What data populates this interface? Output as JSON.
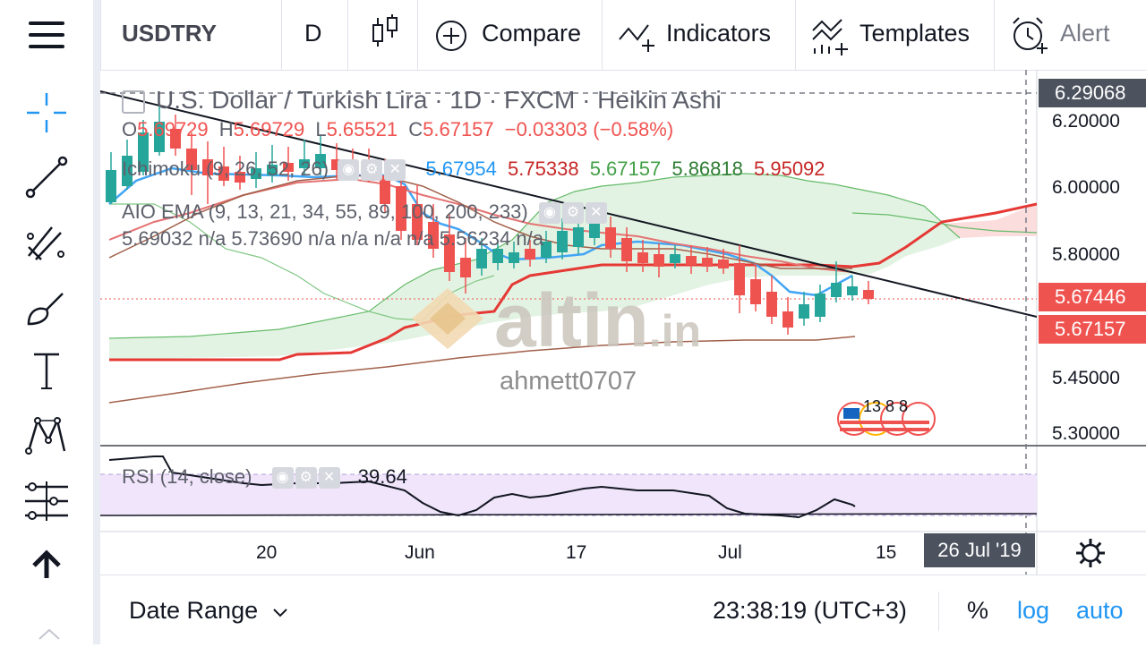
{
  "toolbar": {
    "symbol": "USDTRY",
    "interval": "D",
    "compare_label": "Compare",
    "indicators_label": "Indicators",
    "templates_label": "Templates",
    "alert_label": "Alert"
  },
  "legend": {
    "title": "U.S. Dollar / Turkish Lira · 1D · FXCM · Heikin Ashi",
    "ohlc": {
      "o_key": "O",
      "o_val": "5.69729",
      "h_key": "H",
      "h_val": "5.69729",
      "l_key": "L",
      "l_val": "5.65521",
      "c_key": "C",
      "c_val": "5.67157",
      "change": "−0.03303 (−0.58%)"
    },
    "ichimoku": {
      "name": "Ichimoku (9, 26, 52, 26)",
      "values": [
        "5.67954",
        "5.75338",
        "5.67157",
        "5.86818",
        "5.95092"
      ],
      "colors": [
        "#2196f3",
        "#c62828",
        "#43a047",
        "#2e7d32",
        "#c62828"
      ]
    },
    "aio_ema": {
      "name": "AIO EMA (9, 13, 21, 34, 55, 89, 100, 200, 233)",
      "line2": "5.69032 n/a 5.73690 n/a n/a n/a n/a 5.56234 n/a"
    }
  },
  "rsi": {
    "name": "RSI (14, close)",
    "value": "39.64"
  },
  "price_axis": {
    "ticks": [
      "6.20000",
      "6.00000",
      "5.80000",
      "5.45000",
      "5.30000"
    ],
    "crosshair_label": "6.29068",
    "last_price_label": "5.67446",
    "close_label": "5.67157"
  },
  "time_axis": {
    "ticks": [
      "20",
      "Jun",
      "17",
      "Jul",
      "15"
    ],
    "crosshair_label": "26 Jul '19"
  },
  "watermark": {
    "brand": "altin",
    "brand_suffix": ".in",
    "author": "ahmett0707"
  },
  "events": {
    "badge_text": "13 8 8"
  },
  "bottom": {
    "date_range_label": "Date Range",
    "clock": "23:38:19 (UTC+3)",
    "percent_label": "%",
    "log_label": "log",
    "auto_label": "auto"
  },
  "colors": {
    "up": "#26a69a",
    "down": "#ef5350",
    "blue": "#2196f3",
    "text_muted": "#787b86"
  }
}
